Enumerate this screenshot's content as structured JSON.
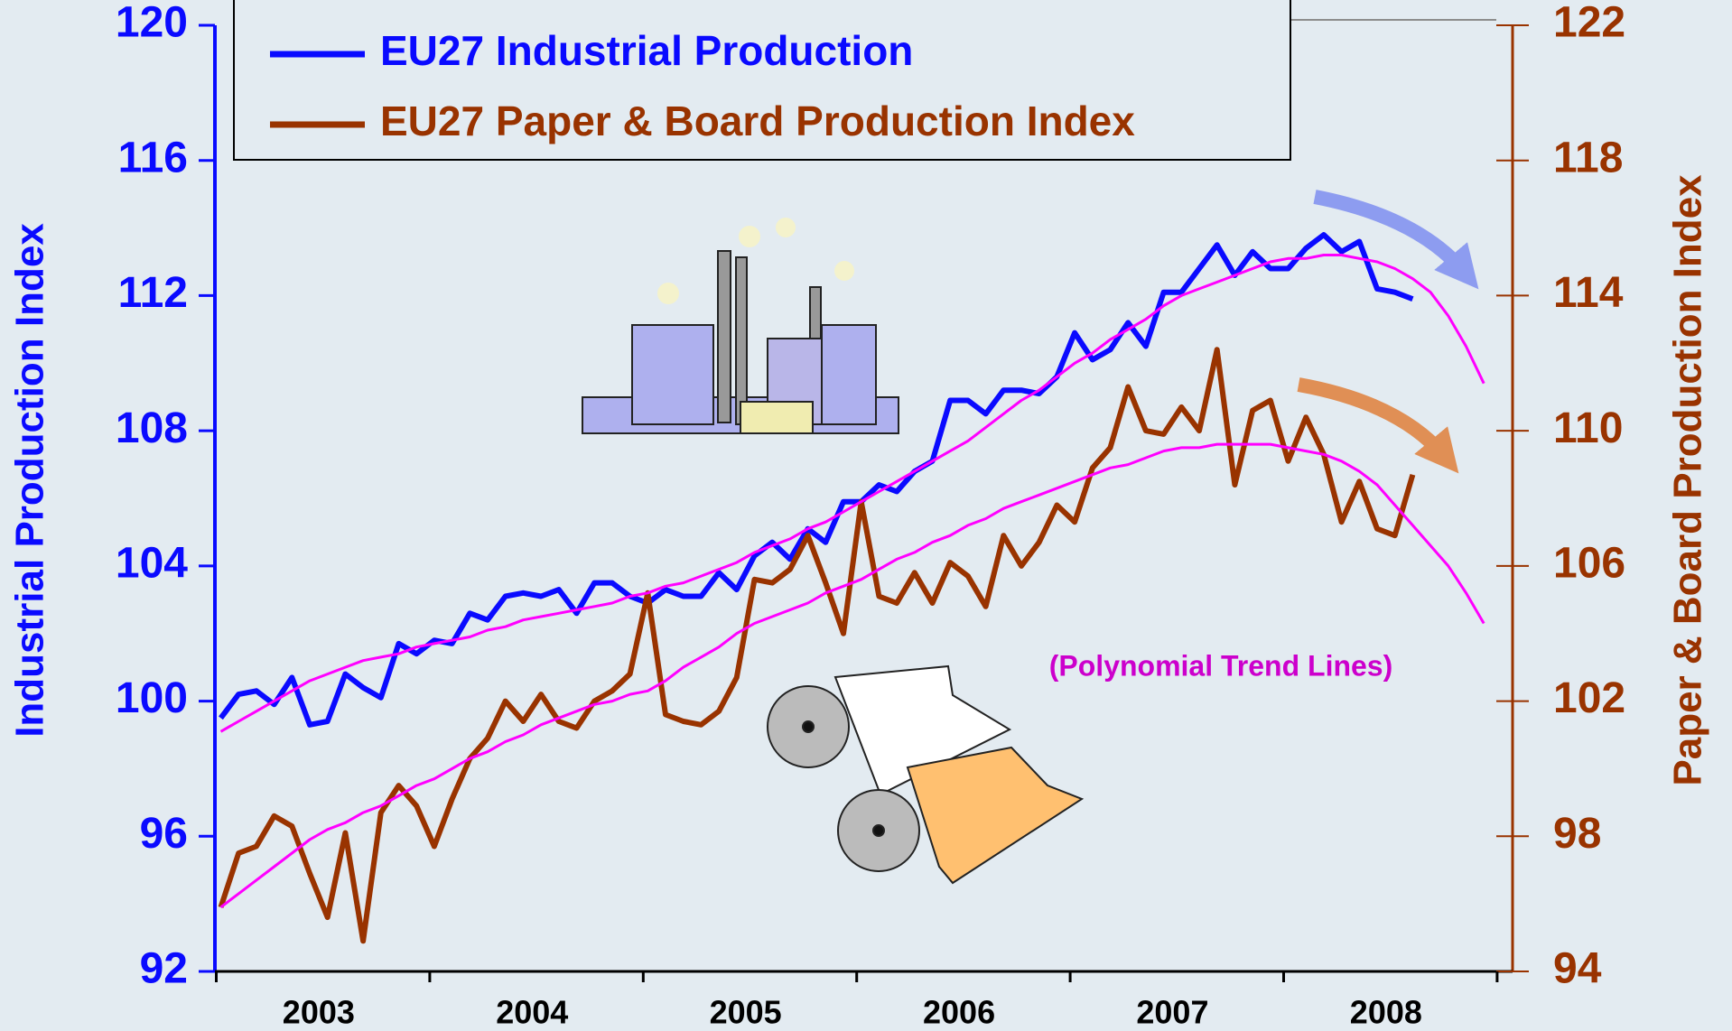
{
  "chart_data": {
    "type": "line",
    "categories": [
      "2003",
      null,
      null,
      null,
      null,
      null,
      null,
      null,
      null,
      null,
      null,
      null,
      "2004",
      null,
      null,
      null,
      null,
      null,
      null,
      null,
      null,
      null,
      null,
      null,
      "2005",
      null,
      null,
      null,
      null,
      null,
      null,
      null,
      null,
      null,
      null,
      null,
      "2006",
      null,
      null,
      null,
      null,
      null,
      null,
      null,
      null,
      null,
      null,
      null,
      "2007",
      null,
      null,
      null,
      null,
      null,
      null,
      null,
      null,
      null,
      null,
      null,
      "2008",
      null,
      null,
      null,
      null,
      null,
      null,
      null,
      null,
      null,
      null,
      null
    ],
    "series": [
      {
        "name": "EU27 Industrial Production",
        "color": "#0a0aff",
        "axis": "y",
        "values": [
          99.5,
          100.2,
          100.3,
          99.9,
          100.7,
          99.3,
          99.4,
          100.8,
          100.4,
          100.1,
          101.7,
          101.4,
          101.8,
          101.7,
          102.6,
          102.4,
          103.1,
          103.2,
          103.1,
          103.3,
          102.6,
          103.5,
          103.5,
          103.1,
          102.9,
          103.3,
          103.1,
          103.1,
          103.8,
          103.3,
          104.3,
          104.7,
          104.2,
          105.1,
          104.7,
          105.9,
          105.9,
          106.4,
          106.2,
          106.8,
          107.1,
          108.9,
          108.9,
          108.5,
          109.2,
          109.2,
          109.1,
          109.6,
          110.9,
          110.1,
          110.4,
          111.2,
          110.5,
          112.1,
          112.1,
          112.8,
          113.5,
          112.6,
          113.3,
          112.8,
          112.8,
          113.4,
          113.8,
          113.3,
          113.6,
          112.2,
          112.1,
          111.9,
          null,
          null,
          null,
          null
        ]
      },
      {
        "name": "EU27 Paper & Board Production Index",
        "color": "#993300",
        "axis": "y2",
        "values": [
          95.9,
          97.5,
          97.7,
          98.6,
          98.3,
          96.9,
          95.6,
          98.1,
          94.9,
          98.7,
          99.5,
          98.9,
          97.7,
          99.1,
          100.3,
          100.9,
          102.0,
          101.4,
          102.2,
          101.4,
          101.2,
          102.0,
          102.3,
          102.8,
          105.2,
          101.6,
          101.4,
          101.3,
          101.7,
          102.7,
          105.6,
          105.5,
          105.9,
          106.9,
          105.5,
          104.0,
          107.9,
          105.1,
          104.9,
          105.8,
          104.9,
          106.1,
          105.7,
          104.8,
          106.9,
          106.0,
          106.7,
          107.8,
          107.3,
          108.9,
          109.5,
          111.3,
          110.0,
          109.9,
          110.7,
          110.0,
          112.4,
          108.4,
          110.6,
          110.9,
          109.1,
          110.4,
          109.3,
          107.3,
          108.5,
          107.1,
          106.9,
          108.7,
          null,
          null,
          null,
          null
        ]
      },
      {
        "color": "#ff00ff",
        "axis": "y",
        "values": [
          99.1,
          99.4,
          99.7,
          100.0,
          100.3,
          100.6,
          100.8,
          101.0,
          101.2,
          101.3,
          101.4,
          101.6,
          101.7,
          101.8,
          101.9,
          102.1,
          102.2,
          102.4,
          102.5,
          102.6,
          102.7,
          102.8,
          102.9,
          103.1,
          103.2,
          103.4,
          103.5,
          103.7,
          103.9,
          104.1,
          104.4,
          104.6,
          104.8,
          105.1,
          105.3,
          105.6,
          105.9,
          106.2,
          106.5,
          106.8,
          107.1,
          107.4,
          107.7,
          108.1,
          108.5,
          108.9,
          109.2,
          109.6,
          110.0,
          110.3,
          110.7,
          111.0,
          111.3,
          111.7,
          112.0,
          112.2,
          112.4,
          112.6,
          112.8,
          113.0,
          113.1,
          113.1,
          113.2,
          113.2,
          113.1,
          113.0,
          112.8,
          112.5,
          112.1,
          111.4,
          110.5,
          109.4
        ]
      },
      {
        "color": "#ff00ff",
        "axis": "y2",
        "values": [
          95.9,
          96.3,
          96.7,
          97.1,
          97.5,
          97.9,
          98.2,
          98.4,
          98.7,
          98.9,
          99.2,
          99.5,
          99.7,
          100.0,
          100.3,
          100.5,
          100.8,
          101.0,
          101.3,
          101.5,
          101.7,
          101.9,
          102.0,
          102.2,
          102.3,
          102.6,
          103.0,
          103.3,
          103.6,
          104.0,
          104.3,
          104.5,
          104.7,
          104.9,
          105.2,
          105.4,
          105.6,
          105.9,
          106.2,
          106.4,
          106.7,
          106.9,
          107.2,
          107.4,
          107.7,
          107.9,
          108.1,
          108.3,
          108.5,
          108.7,
          108.9,
          109.0,
          109.2,
          109.4,
          109.5,
          109.5,
          109.6,
          109.6,
          109.6,
          109.6,
          109.5,
          109.4,
          109.3,
          109.1,
          108.8,
          108.4,
          107.8,
          107.2,
          106.6,
          106.0,
          105.2,
          104.3
        ]
      }
    ],
    "ylabel": "Industrial Production Index",
    "y2label": "Paper & Board Production Index",
    "ylim": [
      92,
      120
    ],
    "yticks": [
      92,
      96,
      100,
      104,
      108,
      112,
      116,
      120
    ],
    "y2lim": [
      94,
      122
    ],
    "y2ticks": [
      94,
      98,
      102,
      106,
      110,
      114,
      118,
      122
    ],
    "ycolor": "#0a0aff",
    "y2color": "#993300",
    "legend": "top-left",
    "annotation": "(Polynomial Trend Lines)",
    "annotation_color": "#cc00cc"
  }
}
